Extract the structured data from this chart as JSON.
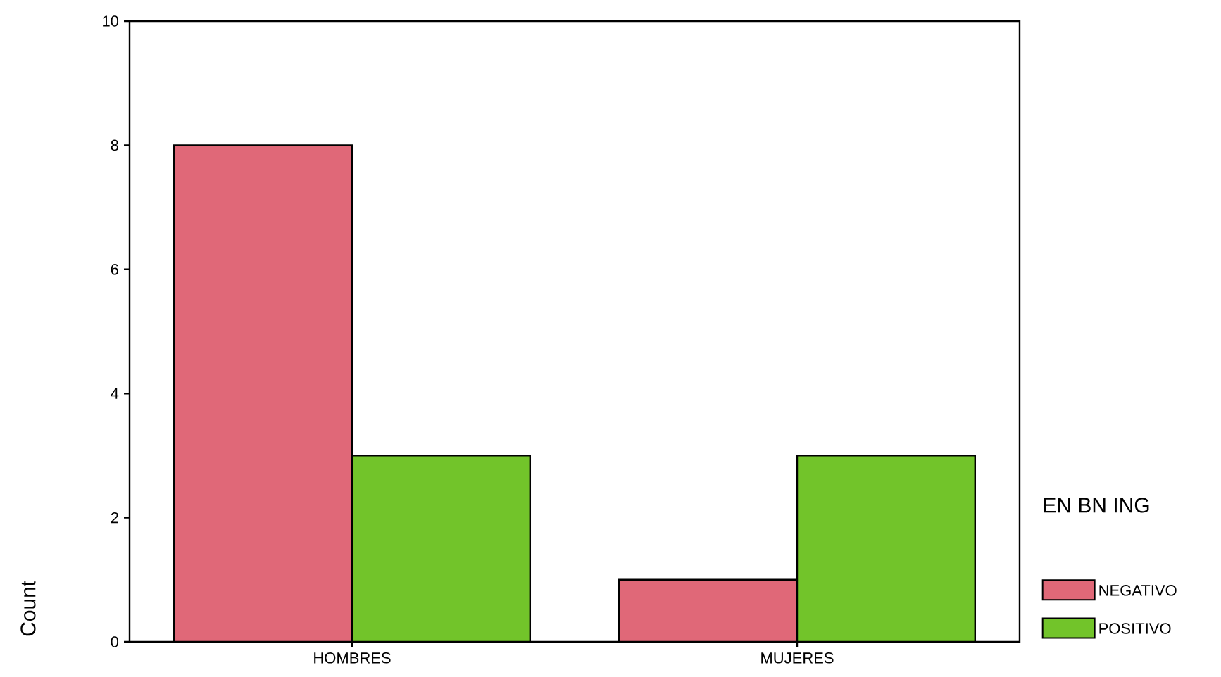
{
  "chart_data": {
    "type": "bar",
    "ylabel": "Count",
    "legend_title": "EN BN ING",
    "categories": [
      "HOMBRES",
      "MUJERES"
    ],
    "series": [
      {
        "name": "NEGATIVO",
        "color": "#e06878",
        "values": [
          8,
          1
        ]
      },
      {
        "name": "POSITIVO",
        "color": "#72c42a",
        "values": [
          3,
          3
        ]
      }
    ],
    "ylim": [
      0,
      10
    ],
    "yticks": [
      0,
      2,
      4,
      6,
      8,
      10
    ],
    "grid": false,
    "legend": "right"
  }
}
